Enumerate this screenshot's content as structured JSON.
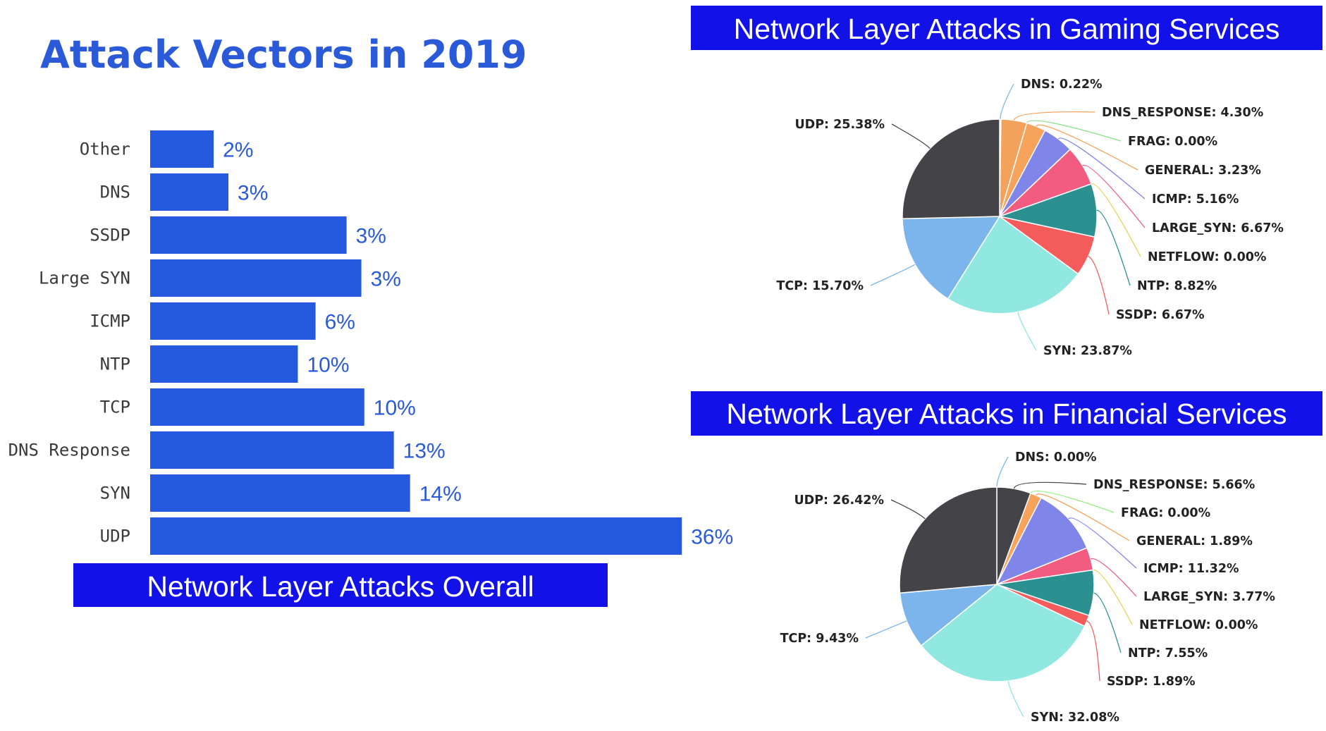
{
  "colors": {
    "bar": "#2459e0",
    "banner": "#1212e8",
    "title": "#2a5ad8"
  },
  "page_title": "Attack Vectors in 2019",
  "chart_data": [
    {
      "id": "overall",
      "type": "bar",
      "orientation": "horizontal",
      "caption": "Network Layer Attacks Overall",
      "categories": [
        "Other",
        "DNS",
        "SSDP",
        "Large SYN",
        "ICMP",
        "NTP",
        "TCP",
        "DNS Response",
        "SYN",
        "UDP"
      ],
      "values": [
        2,
        3,
        3,
        3,
        6,
        10,
        10,
        13,
        14,
        36
      ],
      "value_labels": [
        "2%",
        "3%",
        "3%",
        "3%",
        "6%",
        "10%",
        "10%",
        "13%",
        "14%",
        "36%"
      ],
      "xlim": [
        0,
        36
      ],
      "grid": false,
      "legend": false
    },
    {
      "id": "gaming",
      "type": "pie",
      "title": "Network Layer Attacks in Gaming Services",
      "slices": [
        {
          "name": "DNS",
          "value": 0.22,
          "label": "DNS: 0.22%",
          "color": "#7fb9e6"
        },
        {
          "name": "DNS_RESPONSE",
          "value": 4.3,
          "label": "DNS_RESPONSE: 4.30%",
          "color": "#f3a25b"
        },
        {
          "name": "FRAG",
          "value": 0.0,
          "label": "FRAG: 0.00%",
          "color": "#8ee08a"
        },
        {
          "name": "GENERAL",
          "value": 3.23,
          "label": "GENERAL: 3.23%",
          "color": "#f7a35c"
        },
        {
          "name": "ICMP",
          "value": 5.16,
          "label": "ICMP: 5.16%",
          "color": "#8085e9"
        },
        {
          "name": "LARGE_SYN",
          "value": 6.67,
          "label": "LARGE_SYN: 6.67%",
          "color": "#f15c80"
        },
        {
          "name": "NETFLOW",
          "value": 0.0,
          "label": "NETFLOW: 0.00%",
          "color": "#e4d354"
        },
        {
          "name": "NTP",
          "value": 8.82,
          "label": "NTP: 8.82%",
          "color": "#2b908f"
        },
        {
          "name": "SSDP",
          "value": 6.67,
          "label": "SSDP: 6.67%",
          "color": "#f45b5b"
        },
        {
          "name": "SYN",
          "value": 23.87,
          "label": "SYN: 23.87%",
          "color": "#91e8e1"
        },
        {
          "name": "TCP",
          "value": 15.7,
          "label": "TCP: 15.70%",
          "color": "#7cb5ec"
        },
        {
          "name": "UDP",
          "value": 25.38,
          "label": "UDP: 25.38%",
          "color": "#434348"
        }
      ]
    },
    {
      "id": "financial",
      "type": "pie",
      "title": "Network Layer Attacks in Financial Services",
      "slices": [
        {
          "name": "DNS",
          "value": 0.0,
          "label": "DNS: 0.00%",
          "color": "#7fb9e6"
        },
        {
          "name": "DNS_RESPONSE",
          "value": 5.66,
          "label": "DNS_RESPONSE: 5.66%",
          "color": "#434348"
        },
        {
          "name": "FRAG",
          "value": 0.0,
          "label": "FRAG: 0.00%",
          "color": "#90ed7d"
        },
        {
          "name": "GENERAL",
          "value": 1.89,
          "label": "GENERAL: 1.89%",
          "color": "#f7a35c"
        },
        {
          "name": "ICMP",
          "value": 11.32,
          "label": "ICMP: 11.32%",
          "color": "#8085e9"
        },
        {
          "name": "LARGE_SYN",
          "value": 3.77,
          "label": "LARGE_SYN: 3.77%",
          "color": "#f15c80"
        },
        {
          "name": "NETFLOW",
          "value": 0.0,
          "label": "NETFLOW: 0.00%",
          "color": "#e4d354"
        },
        {
          "name": "NTP",
          "value": 7.55,
          "label": "NTP: 7.55%",
          "color": "#2b908f"
        },
        {
          "name": "SSDP",
          "value": 1.89,
          "label": "SSDP: 1.89%",
          "color": "#f45b5b"
        },
        {
          "name": "SYN",
          "value": 32.08,
          "label": "SYN: 32.08%",
          "color": "#91e8e1"
        },
        {
          "name": "TCP",
          "value": 9.43,
          "label": "TCP: 9.43%",
          "color": "#7cb5ec"
        },
        {
          "name": "UDP",
          "value": 26.42,
          "label": "UDP: 26.42%",
          "color": "#434348"
        }
      ]
    }
  ]
}
